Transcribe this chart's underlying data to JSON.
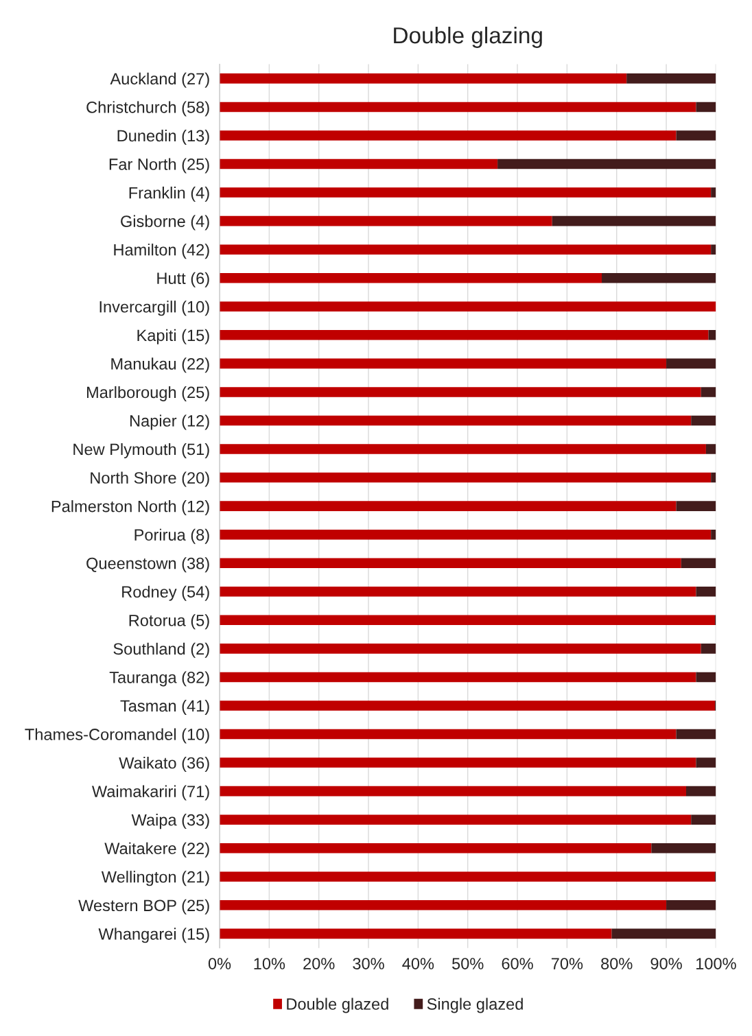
{
  "chart_data": {
    "type": "bar",
    "orientation": "horizontal",
    "stacked": true,
    "title": "Double glazing",
    "categories": [
      "Auckland (27)",
      "Christchurch (58)",
      "Dunedin (13)",
      "Far North (25)",
      "Franklin (4)",
      "Gisborne (4)",
      "Hamilton (42)",
      "Hutt (6)",
      "Invercargill (10)",
      "Kapiti (15)",
      "Manukau (22)",
      "Marlborough (25)",
      "Napier (12)",
      "New Plymouth (51)",
      "North Shore (20)",
      "Palmerston North (12)",
      "Porirua (8)",
      "Queenstown (38)",
      "Rodney (54)",
      "Rotorua (5)",
      "Southland (2)",
      "Tauranga (82)",
      "Tasman (41)",
      "Thames-Coromandel (10)",
      "Waikato (36)",
      "Waimakariri (71)",
      "Waipa (33)",
      "Waitakere (22)",
      "Wellington (21)",
      "Western BOP (25)",
      "Whangarei (15)"
    ],
    "series": [
      {
        "name": "Double glazed",
        "color": "#c00000",
        "values": [
          82,
          96,
          92,
          56,
          99,
          67,
          99,
          77,
          100,
          98.5,
          90,
          97,
          95,
          98,
          99,
          92,
          99,
          93,
          96,
          99.8,
          97,
          96,
          99.8,
          92,
          96,
          94,
          95,
          87,
          99.8,
          90,
          79
        ]
      },
      {
        "name": "Single glazed",
        "color": "#431c1c",
        "values": [
          18,
          4,
          8,
          44,
          1,
          33,
          1,
          23,
          0,
          1.5,
          10,
          3,
          5,
          2,
          1,
          8,
          1,
          7,
          4,
          0.2,
          3,
          4,
          0.2,
          8,
          4,
          6,
          5,
          13,
          0.2,
          10,
          21
        ]
      }
    ],
    "xlim": [
      0,
      100
    ],
    "xticks": [
      {
        "value": 0,
        "label": "0%"
      },
      {
        "value": 10,
        "label": "10%"
      },
      {
        "value": 20,
        "label": "20%"
      },
      {
        "value": 30,
        "label": "30%"
      },
      {
        "value": 40,
        "label": "40%"
      },
      {
        "value": 50,
        "label": "50%"
      },
      {
        "value": 60,
        "label": "60%"
      },
      {
        "value": 70,
        "label": "70%"
      },
      {
        "value": 80,
        "label": "80%"
      },
      {
        "value": 90,
        "label": "90%"
      },
      {
        "value": 100,
        "label": "100%"
      }
    ],
    "grid": "x",
    "legend": "bottom"
  }
}
